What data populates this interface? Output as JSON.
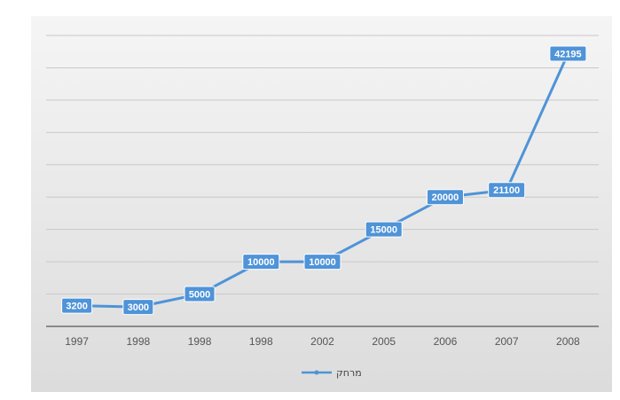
{
  "chart_data": {
    "type": "line",
    "title": "",
    "xlabel": "",
    "ylabel": "",
    "categories": [
      "1997",
      "1998",
      "1998",
      "1998",
      "2002",
      "2005",
      "2006",
      "2007",
      "2008"
    ],
    "series": [
      {
        "name": "מרחק",
        "values": [
          3200,
          3000,
          5000,
          10000,
          10000,
          15000,
          20000,
          21100,
          42195
        ],
        "data_labels": [
          "3200",
          "3000",
          "5000",
          "10000",
          "10000",
          "15000",
          "20000",
          "21100",
          "42195"
        ]
      }
    ],
    "ylim": [
      0,
      45000
    ],
    "grid": true,
    "legend_position": "bottom",
    "colors": {
      "line": "#4f93d8",
      "label_bg": "#4f93d8",
      "grid": "#c9c9c9",
      "axis": "#6f6f6f",
      "plot_bg_top": "#f5f5f5",
      "plot_bg_bottom": "#dcdcdc"
    }
  }
}
